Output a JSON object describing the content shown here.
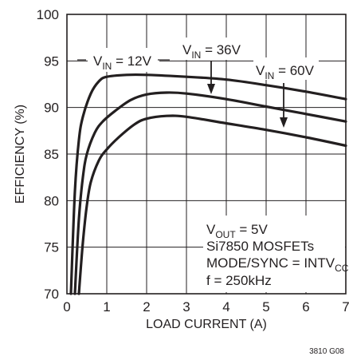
{
  "chart_data": {
    "type": "line",
    "xlabel": "LOAD CURRENT (A)",
    "ylabel": "EFFICIENCY (%)",
    "xlim": [
      0,
      7
    ],
    "ylim": [
      70,
      100
    ],
    "xticks": [
      "0",
      "1",
      "2",
      "3",
      "4",
      "5",
      "6",
      "7"
    ],
    "yticks": [
      "70",
      "75",
      "80",
      "85",
      "90",
      "95",
      "100"
    ],
    "grid": true,
    "series": [
      {
        "name": "VIN = 12V",
        "label_main": "V",
        "label_sub": "IN",
        "label_rest": " = 12V",
        "x": [
          0.1,
          0.2,
          0.3,
          0.4,
          0.6,
          0.8,
          1.0,
          1.5,
          2.0,
          3.0,
          4.0,
          5.0,
          6.0,
          7.0
        ],
        "y": [
          70,
          81,
          86.5,
          89,
          91.5,
          92.8,
          93.3,
          93.5,
          93.5,
          93.3,
          93.0,
          92.4,
          91.7,
          90.9
        ]
      },
      {
        "name": "VIN = 36V",
        "label_main": "V",
        "label_sub": "IN",
        "label_rest": " = 36V",
        "x": [
          0.2,
          0.3,
          0.4,
          0.5,
          0.7,
          0.9,
          1.2,
          1.6,
          2.0,
          2.5,
          3.0,
          4.0,
          5.0,
          6.0,
          7.0
        ],
        "y": [
          70,
          78,
          82.5,
          85,
          87.3,
          88.5,
          89.6,
          90.8,
          91.4,
          91.6,
          91.5,
          90.9,
          90.1,
          89.3,
          88.5
        ]
      },
      {
        "name": "VIN = 60V",
        "label_main": "V",
        "label_sub": "IN",
        "label_rest": " = 60V",
        "x": [
          0.3,
          0.4,
          0.5,
          0.6,
          0.8,
          1.0,
          1.3,
          1.7,
          2.0,
          2.5,
          3.0,
          4.0,
          5.0,
          6.0,
          7.0
        ],
        "y": [
          70,
          75.5,
          79.5,
          82,
          84.3,
          85.5,
          86.8,
          88.2,
          88.8,
          89.1,
          89.0,
          88.3,
          87.6,
          86.8,
          85.9
        ]
      }
    ],
    "annotations": {
      "line1_main": "V",
      "line1_sub": "OUT",
      "line1_rest": " = 5V",
      "line2": "Si7850 MOSFETs",
      "line3_main": "MODE/SYNC = INTV",
      "line3_sub": "CC",
      "line4": "f = 250kHz"
    },
    "figure_id": "3810 G08"
  }
}
